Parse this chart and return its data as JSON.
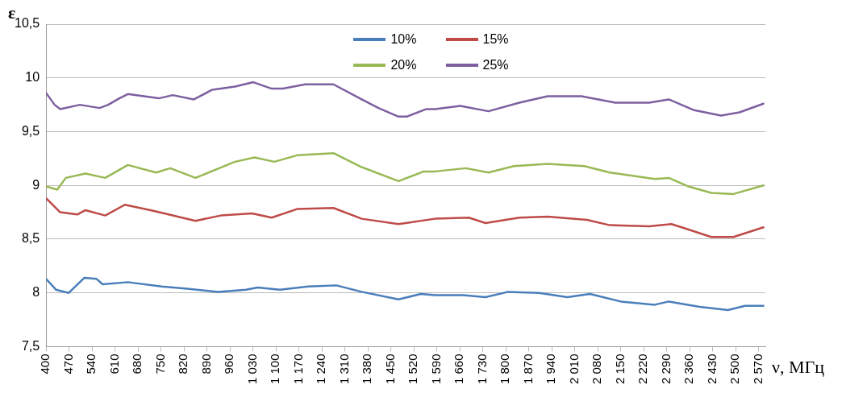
{
  "chart_data": {
    "type": "line",
    "xlabel": "ν, МГц",
    "ylabel": "ε",
    "xlim": [
      400,
      2590
    ],
    "xticks": [
      400,
      470,
      540,
      610,
      680,
      750,
      820,
      890,
      960,
      {
        "value": 1030,
        "label": "1 030"
      },
      {
        "value": 1100,
        "label": "1 100"
      },
      {
        "value": 1170,
        "label": "1 170"
      },
      {
        "value": 1240,
        "label": "1 240"
      },
      {
        "value": 1310,
        "label": "1 310"
      },
      {
        "value": 1380,
        "label": "1 380"
      },
      {
        "value": 1450,
        "label": "1 450"
      },
      {
        "value": 1520,
        "label": "1 520"
      },
      {
        "value": 1590,
        "label": "1 590"
      },
      {
        "value": 1660,
        "label": "1 660"
      },
      {
        "value": 1730,
        "label": "1 730"
      },
      {
        "value": 1800,
        "label": "1 800"
      },
      {
        "value": 1870,
        "label": "1 870"
      },
      {
        "value": 1940,
        "label": "1 940"
      },
      {
        "value": 2010,
        "label": "2 010"
      },
      {
        "value": 2080,
        "label": "2 080"
      },
      {
        "value": 2150,
        "label": "2 150"
      },
      {
        "value": 2220,
        "label": "2 220"
      },
      {
        "value": 2290,
        "label": "2 290"
      },
      {
        "value": 2360,
        "label": "2 360"
      },
      {
        "value": 2430,
        "label": "2 430"
      },
      {
        "value": 2500,
        "label": "2 500"
      },
      {
        "value": 2570,
        "label": "2 570"
      }
    ],
    "ylim": [
      7.5,
      10.5
    ],
    "yticks": [
      {
        "value": 7.5,
        "label": "7,5"
      },
      8,
      {
        "value": 8.5,
        "label": "8,5"
      },
      9,
      {
        "value": 9.5,
        "label": "9,5"
      },
      10,
      {
        "value": 10.5,
        "label": "10,5"
      }
    ],
    "grid": "y",
    "legend": "top",
    "line_style": "solid",
    "marker": "none",
    "series": [
      {
        "name": "10%",
        "color": "#4a7ebb",
        "x": [
          400,
          430,
          469,
          516,
          554,
          572,
          649,
          752,
          829,
          923,
          1009,
          1044,
          1112,
          1198,
          1284,
          1361,
          1473,
          1541,
          1584,
          1670,
          1738,
          1807,
          1901,
          1987,
          2056,
          2150,
          2253,
          2296,
          2390,
          2476,
          2528,
          2584
        ],
        "values": [
          8.13,
          8.03,
          8.0,
          8.14,
          8.13,
          8.08,
          8.1,
          8.06,
          8.04,
          8.01,
          8.03,
          8.05,
          8.03,
          8.06,
          8.07,
          8.01,
          7.94,
          7.99,
          7.98,
          7.98,
          7.96,
          8.01,
          8.0,
          7.96,
          7.99,
          7.92,
          7.89,
          7.92,
          7.87,
          7.84,
          7.88,
          7.88
        ]
      },
      {
        "name": "15%",
        "color": "#be4b48",
        "x": [
          400,
          443,
          495,
          520,
          580,
          640,
          718,
          760,
          855,
          932,
          1027,
          1087,
          1164,
          1275,
          1361,
          1473,
          1584,
          1687,
          1738,
          1841,
          1927,
          2047,
          2116,
          2236,
          2304,
          2356,
          2425,
          2493,
          2584
        ],
        "values": [
          8.88,
          8.75,
          8.73,
          8.77,
          8.72,
          8.82,
          8.77,
          8.74,
          8.67,
          8.72,
          8.74,
          8.7,
          8.78,
          8.79,
          8.69,
          8.64,
          8.69,
          8.7,
          8.65,
          8.7,
          8.71,
          8.68,
          8.63,
          8.62,
          8.64,
          8.59,
          8.52,
          8.52,
          8.61
        ]
      },
      {
        "name": "20%",
        "color": "#98b954",
        "x": [
          400,
          434,
          460,
          520,
          580,
          649,
          735,
          778,
          855,
          975,
          1035,
          1095,
          1164,
          1275,
          1361,
          1473,
          1550,
          1584,
          1678,
          1747,
          1824,
          1927,
          2039,
          2116,
          2253,
          2296,
          2356,
          2425,
          2493,
          2584
        ],
        "values": [
          8.99,
          8.96,
          9.07,
          9.11,
          9.07,
          9.19,
          9.12,
          9.16,
          9.07,
          9.22,
          9.26,
          9.22,
          9.28,
          9.3,
          9.17,
          9.04,
          9.13,
          9.13,
          9.16,
          9.12,
          9.18,
          9.2,
          9.18,
          9.12,
          9.06,
          9.07,
          8.99,
          8.93,
          8.92,
          9.0
        ]
      },
      {
        "name": "25%",
        "color": "#7d60a0",
        "x": [
          400,
          426,
          443,
          503,
          563,
          589,
          623,
          649,
          743,
          786,
          850,
          906,
          975,
          1031,
          1087,
          1121,
          1189,
          1275,
          1361,
          1412,
          1473,
          1498,
          1558,
          1584,
          1661,
          1747,
          1841,
          1927,
          2030,
          2133,
          2236,
          2296,
          2373,
          2455,
          2511,
          2584
        ],
        "values": [
          9.86,
          9.75,
          9.71,
          9.75,
          9.72,
          9.75,
          9.81,
          9.85,
          9.81,
          9.84,
          9.8,
          9.89,
          9.92,
          9.96,
          9.9,
          9.9,
          9.94,
          9.94,
          9.8,
          9.72,
          9.64,
          9.64,
          9.71,
          9.71,
          9.74,
          9.69,
          9.77,
          9.83,
          9.83,
          9.77,
          9.77,
          9.8,
          9.7,
          9.65,
          9.68,
          9.76
        ]
      }
    ]
  }
}
